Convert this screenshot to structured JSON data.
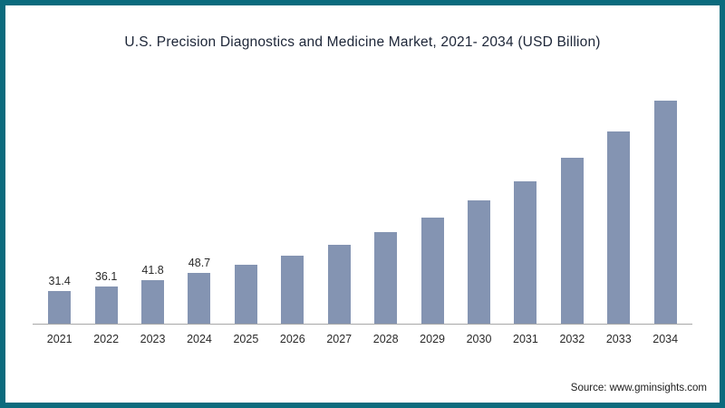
{
  "title": "U.S. Precision Diagnostics and Medicine Market, 2021- 2034 (USD Billion)",
  "source": "Source: www.gminsights.com",
  "colors": {
    "bar": "#8494b2",
    "frame_border": "#0b6b7d",
    "axis": "#a8a8a8",
    "title_text": "#1c2537"
  },
  "chart_data": {
    "type": "bar",
    "title": "U.S. Precision Diagnostics and Medicine Market, 2021- 2034 (USD Billion)",
    "xlabel": "",
    "ylabel": "USD Billion",
    "ylim": [
      0,
      230
    ],
    "grid": false,
    "legend": false,
    "categories": [
      "2021",
      "2022",
      "2023",
      "2024",
      "2025",
      "2026",
      "2027",
      "2028",
      "2029",
      "2030",
      "2031",
      "2032",
      "2033",
      "2034"
    ],
    "values": [
      31.4,
      36.1,
      41.8,
      48.7,
      56.5,
      65.5,
      76,
      88,
      102,
      118.5,
      137.5,
      160,
      185.5,
      215
    ],
    "data_labels": [
      "31.4",
      "36.1",
      "41.8",
      "48.7",
      "",
      "",
      "",
      "",
      "",
      "",
      "",
      "",
      "",
      ""
    ]
  }
}
